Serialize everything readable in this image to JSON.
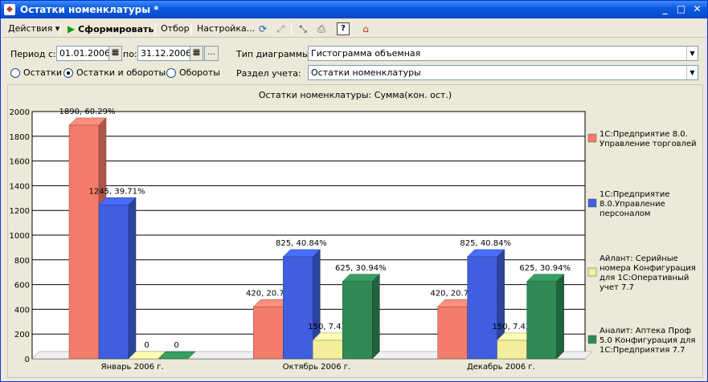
{
  "window": {
    "title": "Остатки номенклатуры *"
  },
  "toolbar": {
    "actions_label": "Действия ▾",
    "generate_label": "Сформировать",
    "filter_label": "Отбор",
    "settings_label": "Настройка..."
  },
  "form": {
    "period_from_label": "Период с:",
    "period_from_value": "01.01.2006",
    "period_to_label": "по:",
    "period_to_value": "31.12.2006",
    "chart_type_label": "Тип диаграммы",
    "chart_type_value": "Гистограмма объемная",
    "section_label": "Раздел учета:",
    "section_value": "Остатки номенклатуры",
    "radio_balances": "Остатки",
    "radio_balances_turnover": "Остатки и обороты",
    "radio_turnover": "Обороты",
    "selected_radio": "Остатки и обороты"
  },
  "chart_data": {
    "type": "bar",
    "title": "Остатки номенклатуры: Сумма(кон. ост.)",
    "xlabel": "",
    "ylabel": "",
    "ylim": [
      0,
      2000
    ],
    "yticks": [
      0,
      200,
      400,
      600,
      800,
      1000,
      1200,
      1400,
      1600,
      1800,
      2000
    ],
    "grid": true,
    "legend_position": "right",
    "categories": [
      "Январь 2006 г.",
      "Октябрь 2006 г.",
      "Декабрь 2006 г."
    ],
    "series": [
      {
        "name": "1С:Предприятие 8.0. Управление торговлей",
        "color": "#f47c6c",
        "values": [
          1890,
          420,
          420
        ],
        "labels": [
          "1890, 60.29%",
          "420, 20.79%",
          "420, 20.79%"
        ]
      },
      {
        "name": "1С:Предприятие 8.0.Управление персоналом",
        "color": "#3f5fe0",
        "values": [
          1245,
          825,
          825
        ],
        "labels": [
          "1245, 39.71%",
          "825, 40.84%",
          "825, 40.84%"
        ]
      },
      {
        "name": "Айлант: Серийные номера Конфигурация для 1С:Оперативный учет 7.7",
        "color": "#f3ee9c",
        "values": [
          0,
          150,
          150
        ],
        "labels": [
          "0",
          "150, 7.43%",
          "150, 7.43%"
        ]
      },
      {
        "name": "Аналит: Аптека Проф 5.0 Конфигурация для 1С:Предприятия 7.7",
        "color": "#2f8a55",
        "values": [
          0,
          625,
          625
        ],
        "labels": [
          "0",
          "625, 30.94%",
          "625, 30.94%"
        ]
      }
    ]
  }
}
